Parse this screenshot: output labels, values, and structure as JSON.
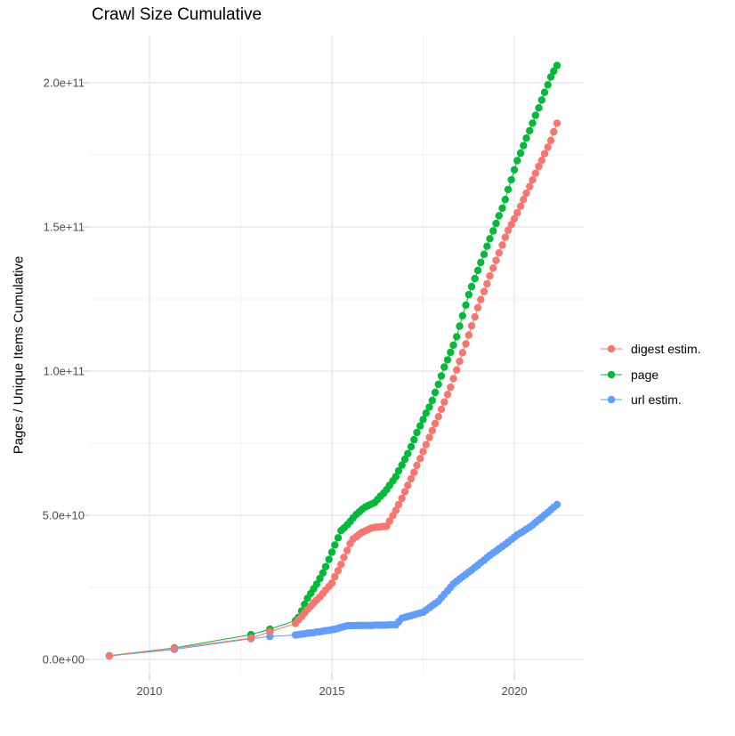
{
  "title": "Crawl Size Cumulative",
  "y_axis": {
    "label": "Pages / Unique Items Cumulative",
    "ticks": [
      {
        "label": "0.0e+00",
        "value": 0
      },
      {
        "label": "5.0e+10",
        "value": 50
      },
      {
        "label": "1.0e+11",
        "value": 100
      },
      {
        "label": "1.5e+11",
        "value": 150
      },
      {
        "label": "2.0e+11",
        "value": 200
      }
    ],
    "minor_values": [
      25,
      75,
      125,
      175
    ]
  },
  "x_axis": {
    "label": "",
    "ticks": [
      {
        "label": "2010",
        "value": 2010
      },
      {
        "label": "2015",
        "value": 2015
      },
      {
        "label": "2020",
        "value": 2020
      }
    ],
    "minor_values": [
      2012.5,
      2017.5
    ]
  },
  "legend": {
    "position": "right",
    "items": [
      {
        "label": "digest estim.",
        "color": "#F8766D"
      },
      {
        "label": "page",
        "color": "#00BA38"
      },
      {
        "label": "url estim.",
        "color": "#619CFF"
      }
    ]
  },
  "colors": {
    "digest": "#F8766D",
    "page": "#00BA38",
    "url": "#619CFF",
    "grid_major": "#e4e4e4",
    "grid_minor": "#f0f0f0",
    "tick_mark": "#d4d4d4",
    "tick_text": "#4d4d4d",
    "background": "#ffffff"
  },
  "chart_data": {
    "type": "line",
    "marker": "point",
    "title": "Crawl Size Cumulative",
    "xlabel": "",
    "ylabel": "Pages / Unique Items Cumulative",
    "x_unit": "year",
    "value_unit": "billions of items (1e9)",
    "xlim": [
      2008.3,
      2021.9
    ],
    "ylim_billions": [
      0,
      216
    ],
    "grid": true,
    "legend_position": "right",
    "series": [
      {
        "name": "digest estim.",
        "color": "#F8766D",
        "points": [
          [
            2008.9,
            1.2
          ],
          [
            2010.68,
            3.9
          ],
          [
            2012.78,
            7.4
          ],
          [
            2013.3,
            9.6
          ],
          [
            2014,
            12.5
          ],
          [
            2014.08,
            13.7
          ],
          [
            2014.17,
            14.9
          ],
          [
            2014.25,
            16.1
          ],
          [
            2014.33,
            17.3
          ],
          [
            2014.42,
            18.5
          ],
          [
            2014.5,
            19.6
          ],
          [
            2014.58,
            20.6
          ],
          [
            2014.67,
            21.7
          ],
          [
            2014.75,
            22.9
          ],
          [
            2014.83,
            24.1
          ],
          [
            2014.92,
            25.3
          ],
          [
            2015,
            26.5
          ],
          [
            2015.08,
            28.7
          ],
          [
            2015.17,
            30.8
          ],
          [
            2015.25,
            33
          ],
          [
            2015.33,
            35.4
          ],
          [
            2015.42,
            37.8
          ],
          [
            2015.5,
            40.2
          ],
          [
            2015.58,
            41.8
          ],
          [
            2015.67,
            42.6
          ],
          [
            2015.75,
            43.4
          ],
          [
            2015.83,
            44.1
          ],
          [
            2015.92,
            44.6
          ],
          [
            2016,
            45.1
          ],
          [
            2016.08,
            45.6
          ],
          [
            2016.17,
            45.8
          ],
          [
            2016.25,
            45.9
          ],
          [
            2016.33,
            46
          ],
          [
            2016.42,
            46.1
          ],
          [
            2016.5,
            46.2
          ],
          [
            2016.58,
            48
          ],
          [
            2016.67,
            49.9
          ],
          [
            2016.75,
            51.7
          ],
          [
            2016.83,
            53.7
          ],
          [
            2016.92,
            55.9
          ],
          [
            2017,
            58.2
          ],
          [
            2017.08,
            60.4
          ],
          [
            2017.17,
            62.7
          ],
          [
            2017.25,
            64.9
          ],
          [
            2017.33,
            67.3
          ],
          [
            2017.42,
            69.7
          ],
          [
            2017.5,
            72.1
          ],
          [
            2017.58,
            74.5
          ],
          [
            2017.67,
            77
          ],
          [
            2017.75,
            79.4
          ],
          [
            2017.83,
            81.8
          ],
          [
            2017.92,
            84.2
          ],
          [
            2018,
            86.8
          ],
          [
            2018.08,
            89.3
          ],
          [
            2018.17,
            91.9
          ],
          [
            2018.25,
            94.4
          ],
          [
            2018.33,
            97.4
          ],
          [
            2018.42,
            100.4
          ],
          [
            2018.5,
            103.4
          ],
          [
            2018.58,
            106.4
          ],
          [
            2018.67,
            109.4
          ],
          [
            2018.75,
            112.5
          ],
          [
            2018.83,
            115.7
          ],
          [
            2018.92,
            118.8
          ],
          [
            2019,
            122
          ],
          [
            2019.08,
            124.8
          ],
          [
            2019.17,
            127.6
          ],
          [
            2019.25,
            130.3
          ],
          [
            2019.33,
            133
          ],
          [
            2019.42,
            135.7
          ],
          [
            2019.5,
            138.4
          ],
          [
            2019.58,
            141
          ],
          [
            2019.67,
            143.7
          ],
          [
            2019.75,
            146.4
          ],
          [
            2019.83,
            148.8
          ],
          [
            2019.92,
            150.8
          ],
          [
            2020,
            152.8
          ],
          [
            2020.08,
            154.9
          ],
          [
            2020.17,
            157.2
          ],
          [
            2020.25,
            159.5
          ],
          [
            2020.33,
            161.7
          ],
          [
            2020.42,
            164
          ],
          [
            2020.5,
            166.3
          ],
          [
            2020.58,
            168.6
          ],
          [
            2020.67,
            171
          ],
          [
            2020.75,
            173.1
          ],
          [
            2020.83,
            175.4
          ],
          [
            2020.92,
            177.7
          ],
          [
            2021,
            180
          ],
          [
            2021.08,
            183
          ],
          [
            2021.17,
            186
          ]
        ]
      },
      {
        "name": "page",
        "color": "#00BA38",
        "points": [
          [
            2008.9,
            1.3
          ],
          [
            2010.68,
            4
          ],
          [
            2012.78,
            8.6
          ],
          [
            2013.3,
            10.5
          ],
          [
            2014,
            13.5
          ],
          [
            2014.08,
            14.6
          ],
          [
            2014.17,
            16.8
          ],
          [
            2014.25,
            19.1
          ],
          [
            2014.33,
            21.2
          ],
          [
            2014.42,
            22.9
          ],
          [
            2014.5,
            24.5
          ],
          [
            2014.58,
            26.1
          ],
          [
            2014.67,
            28.1
          ],
          [
            2014.75,
            30
          ],
          [
            2014.83,
            32.2
          ],
          [
            2014.92,
            34.7
          ],
          [
            2015,
            37.2
          ],
          [
            2015.08,
            39.7
          ],
          [
            2015.17,
            42.2
          ],
          [
            2015.25,
            44.7
          ],
          [
            2015.33,
            45.6
          ],
          [
            2015.42,
            46.7
          ],
          [
            2015.5,
            47.8
          ],
          [
            2015.58,
            49.1
          ],
          [
            2015.67,
            50.3
          ],
          [
            2015.75,
            51.2
          ],
          [
            2015.83,
            52.1
          ],
          [
            2015.92,
            52.9
          ],
          [
            2016,
            53.4
          ],
          [
            2016.08,
            53.9
          ],
          [
            2016.17,
            54.4
          ],
          [
            2016.25,
            55.5
          ],
          [
            2016.33,
            56.6
          ],
          [
            2016.42,
            57.7
          ],
          [
            2016.5,
            58.9
          ],
          [
            2016.58,
            60.4
          ],
          [
            2016.67,
            61.9
          ],
          [
            2016.75,
            63.4
          ],
          [
            2016.83,
            65.4
          ],
          [
            2016.92,
            67.4
          ],
          [
            2017,
            69.4
          ],
          [
            2017.08,
            71.4
          ],
          [
            2017.17,
            73.8
          ],
          [
            2017.25,
            76.2
          ],
          [
            2017.33,
            78.7
          ],
          [
            2017.42,
            81
          ],
          [
            2017.5,
            83.2
          ],
          [
            2017.58,
            85.4
          ],
          [
            2017.67,
            87.5
          ],
          [
            2017.75,
            89.8
          ],
          [
            2017.83,
            92.6
          ],
          [
            2017.92,
            95.4
          ],
          [
            2018,
            98.3
          ],
          [
            2018.08,
            101.4
          ],
          [
            2018.17,
            103.9
          ],
          [
            2018.25,
            106.5
          ],
          [
            2018.33,
            109
          ],
          [
            2018.42,
            111.9
          ],
          [
            2018.5,
            115.6
          ],
          [
            2018.58,
            119.2
          ],
          [
            2018.67,
            122.9
          ],
          [
            2018.75,
            126.5
          ],
          [
            2018.83,
            129.3
          ],
          [
            2018.92,
            132.1
          ],
          [
            2019,
            134.9
          ],
          [
            2019.08,
            137.7
          ],
          [
            2019.17,
            140.5
          ],
          [
            2019.25,
            143.3
          ],
          [
            2019.33,
            145.9
          ],
          [
            2019.42,
            148.6
          ],
          [
            2019.5,
            151.2
          ],
          [
            2019.58,
            153.9
          ],
          [
            2019.67,
            156.5
          ],
          [
            2019.75,
            159.5
          ],
          [
            2019.83,
            163
          ],
          [
            2019.92,
            166.4
          ],
          [
            2020,
            169.8
          ],
          [
            2020.08,
            173
          ],
          [
            2020.17,
            175.6
          ],
          [
            2020.25,
            178.2
          ],
          [
            2020.33,
            180.8
          ],
          [
            2020.42,
            183.4
          ],
          [
            2020.5,
            186
          ],
          [
            2020.58,
            188.7
          ],
          [
            2020.67,
            191.3
          ],
          [
            2020.75,
            194
          ],
          [
            2020.83,
            196.7
          ],
          [
            2020.92,
            199.3
          ],
          [
            2021,
            202
          ],
          [
            2021.08,
            204
          ],
          [
            2021.17,
            206
          ]
        ]
      },
      {
        "name": "url estim.",
        "color": "#619CFF",
        "points": [
          [
            2008.9,
            1.2
          ],
          [
            2010.68,
            3.5
          ],
          [
            2012.78,
            7.2
          ],
          [
            2013.3,
            8
          ],
          [
            2014,
            8.5
          ],
          [
            2014.08,
            8.6
          ],
          [
            2014.17,
            8.8
          ],
          [
            2014.25,
            8.9
          ],
          [
            2014.33,
            9.1
          ],
          [
            2014.42,
            9.2
          ],
          [
            2014.5,
            9.3
          ],
          [
            2014.58,
            9.5
          ],
          [
            2014.67,
            9.6
          ],
          [
            2014.75,
            9.8
          ],
          [
            2014.83,
            10
          ],
          [
            2014.92,
            10.1
          ],
          [
            2015,
            10.3
          ],
          [
            2015.08,
            10.5
          ],
          [
            2015.17,
            10.8
          ],
          [
            2015.25,
            11.1
          ],
          [
            2015.33,
            11.4
          ],
          [
            2015.42,
            11.7
          ],
          [
            2015.5,
            11.7
          ],
          [
            2015.58,
            11.7
          ],
          [
            2015.67,
            11.8
          ],
          [
            2015.75,
            11.8
          ],
          [
            2015.83,
            11.8
          ],
          [
            2015.92,
            11.8
          ],
          [
            2016,
            11.8
          ],
          [
            2016.08,
            11.8
          ],
          [
            2016.17,
            11.9
          ],
          [
            2016.25,
            11.9
          ],
          [
            2016.33,
            11.9
          ],
          [
            2016.42,
            11.9
          ],
          [
            2016.5,
            11.9
          ],
          [
            2016.58,
            12
          ],
          [
            2016.67,
            12
          ],
          [
            2016.75,
            12
          ],
          [
            2016.83,
            13.1
          ],
          [
            2016.92,
            14.3
          ],
          [
            2017,
            14.6
          ],
          [
            2017.08,
            14.9
          ],
          [
            2017.17,
            15.2
          ],
          [
            2017.25,
            15.5
          ],
          [
            2017.33,
            15.8
          ],
          [
            2017.42,
            16.1
          ],
          [
            2017.5,
            16.4
          ],
          [
            2017.58,
            17.1
          ],
          [
            2017.67,
            17.9
          ],
          [
            2017.75,
            18.7
          ],
          [
            2017.83,
            19.4
          ],
          [
            2017.92,
            20.2
          ],
          [
            2018,
            21.4
          ],
          [
            2018.08,
            22.6
          ],
          [
            2018.17,
            23.8
          ],
          [
            2018.25,
            25
          ],
          [
            2018.33,
            26.2
          ],
          [
            2018.42,
            27.1
          ],
          [
            2018.5,
            27.9
          ],
          [
            2018.58,
            28.7
          ],
          [
            2018.67,
            29.5
          ],
          [
            2018.75,
            30.3
          ],
          [
            2018.83,
            31
          ],
          [
            2018.92,
            31.9
          ],
          [
            2019,
            32.7
          ],
          [
            2019.08,
            33.6
          ],
          [
            2019.17,
            34.4
          ],
          [
            2019.25,
            35.3
          ],
          [
            2019.33,
            36.1
          ],
          [
            2019.42,
            36.9
          ],
          [
            2019.5,
            37.6
          ],
          [
            2019.58,
            38.4
          ],
          [
            2019.67,
            39.2
          ],
          [
            2019.75,
            39.9
          ],
          [
            2019.83,
            40.7
          ],
          [
            2019.92,
            41.6
          ],
          [
            2020,
            42.4
          ],
          [
            2020.08,
            43.2
          ],
          [
            2020.17,
            43.9
          ],
          [
            2020.25,
            44.5
          ],
          [
            2020.33,
            45.2
          ],
          [
            2020.42,
            45.9
          ],
          [
            2020.5,
            46.6
          ],
          [
            2020.58,
            47.5
          ],
          [
            2020.67,
            48.4
          ],
          [
            2020.75,
            49.2
          ],
          [
            2020.83,
            50.1
          ],
          [
            2020.92,
            51
          ],
          [
            2021,
            51.9
          ],
          [
            2021.08,
            52.8
          ],
          [
            2021.17,
            53.7
          ]
        ]
      }
    ]
  }
}
